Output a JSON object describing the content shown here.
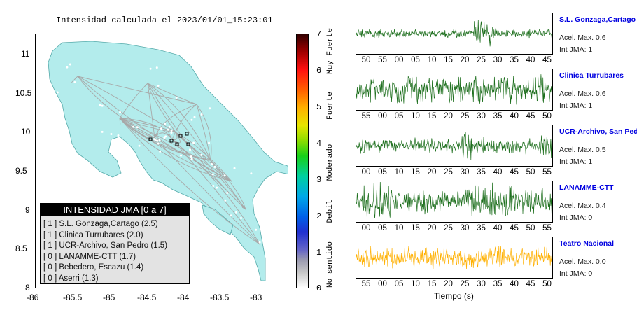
{
  "map": {
    "title": "Intensidad calculada el 2023/01/01_15:23:01",
    "x_ticks": [
      "-86",
      "-85.5",
      "-85",
      "-84.5",
      "-84",
      "-83.5",
      "-83"
    ],
    "y_ticks": [
      "11",
      "10.5",
      "10",
      "9.5",
      "9",
      "8.5",
      "8"
    ],
    "land_color": "#b3ecec",
    "road_color": "#aaaaaa"
  },
  "legend": {
    "title": "INTENSIDAD JMA [0 a 7]",
    "rows": [
      "[ 1 ]  S.L. Gonzaga,Cartago (2.5)",
      "[ 1 ]  Clinica Turrubares (2.0)",
      "[ 1 ]  UCR-Archivo, San Pedro (1.5)",
      "[ 0 ]  LANAMME-CTT (1.7)",
      "[ 0 ]  Bebedero, Escazu (1.4)",
      "[ 0 ]  Aserri (1.3)"
    ]
  },
  "colorbar": {
    "values": [
      "7",
      "6",
      "5",
      "4",
      "3",
      "2",
      "1",
      "0"
    ],
    "categories": [
      "Muy Fuerte",
      "Fuerte",
      "Moderado",
      "Debil",
      "No sentido"
    ]
  },
  "traces": [
    {
      "name": "S.L. Gonzaga,Cartago",
      "accel": "Acel. Max. 0.6",
      "jma": "Int JMA: 1",
      "color": "#1c6e1c",
      "ticks": [
        "50",
        "55",
        "00",
        "05",
        "10",
        "15",
        "20",
        "25",
        "30",
        "35",
        "40",
        "45"
      ]
    },
    {
      "name": "Clinica Turrubares",
      "accel": "Acel. Max. 0.6",
      "jma": "Int JMA: 1",
      "color": "#1c6e1c",
      "ticks": [
        "55",
        "00",
        "05",
        "10",
        "15",
        "20",
        "25",
        "30",
        "35",
        "40",
        "45",
        "50"
      ]
    },
    {
      "name": "UCR-Archivo, San Pedro",
      "accel": "Acel. Max. 0.5",
      "jma": "Int JMA: 1",
      "color": "#1c6e1c",
      "ticks": [
        "00",
        "05",
        "10",
        "15",
        "20",
        "25",
        "30",
        "35",
        "40",
        "45",
        "50",
        "55"
      ]
    },
    {
      "name": "LANAMME-CTT",
      "accel": "Acel. Max. 0.4",
      "jma": "Int JMA: 0",
      "color": "#1c6e1c",
      "ticks": [
        "00",
        "05",
        "10",
        "15",
        "20",
        "25",
        "30",
        "35",
        "40",
        "45",
        "50",
        "55"
      ]
    },
    {
      "name": "Teatro Nacional",
      "accel": "Acel. Max. 0.0",
      "jma": "Int JMA: 0",
      "color": "#ffb000",
      "ticks": [
        "55",
        "00",
        "05",
        "10",
        "15",
        "20",
        "25",
        "30",
        "35",
        "40",
        "45",
        "50"
      ]
    }
  ],
  "time_axis_label": "Tiempo (s)"
}
